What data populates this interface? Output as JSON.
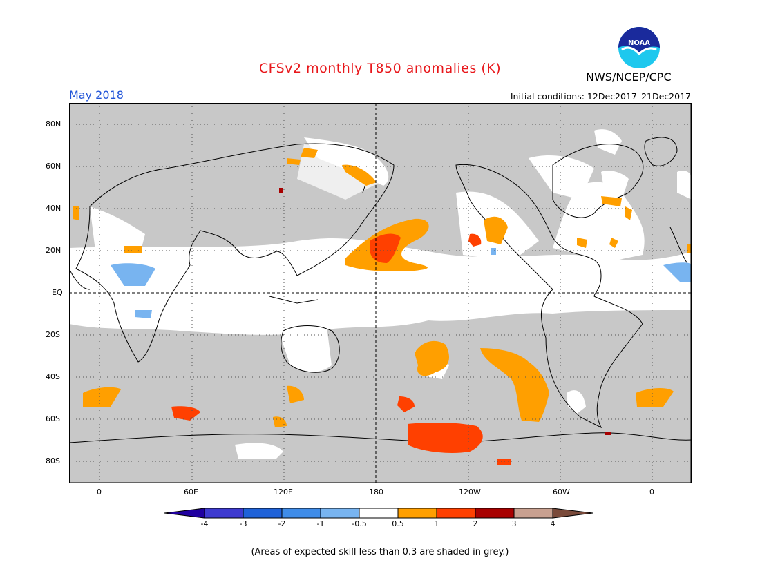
{
  "header": {
    "title": "CFSv2 monthly T850 anomalies (K)",
    "period": "May 2018",
    "initial_conditions": "Initial conditions: 12Dec2017–21Dec2017",
    "agency": "NWS/NCEP/CPC",
    "logo_text": "NOAA"
  },
  "map": {
    "lat_labels": [
      "80N",
      "60N",
      "40N",
      "20N",
      "EQ",
      "20S",
      "40S",
      "60S",
      "80S"
    ],
    "lon_labels": [
      "0",
      "60E",
      "120E",
      "180",
      "120W",
      "60W",
      "0"
    ],
    "colors": {
      "skill_grey": "#c8c8c8",
      "pos_0_5_1": "#ff9f00",
      "pos_1_2": "#ff4000",
      "pos_2_3": "#a80000",
      "neg_1_0_5": "#78b4f0"
    }
  },
  "legend": {
    "labels": [
      "-4",
      "-3",
      "-2",
      "-1",
      "-0.5",
      "0.5",
      "1",
      "2",
      "3",
      "4"
    ],
    "colors": [
      "#2000a0",
      "#3e3ad0",
      "#1f62d8",
      "#3f8ce8",
      "#78b4f0",
      "#ffffff",
      "#ff9f00",
      "#ff4000",
      "#a80000",
      "#c8a090",
      "#7a4a3a"
    ]
  },
  "footnote": "(Areas of expected skill less than 0.3 are shaded in grey.)"
}
